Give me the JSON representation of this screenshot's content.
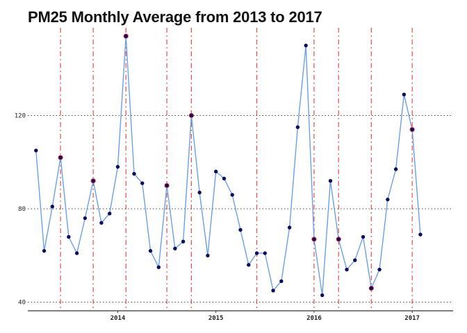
{
  "chart_data": {
    "type": "line",
    "title": "PM25 Monthly Average from 2013 to 2017",
    "xlabel": "",
    "ylabel": "",
    "x_axis": "dates",
    "x": [
      "2013-03",
      "2013-04",
      "2013-05",
      "2013-06",
      "2013-07",
      "2013-08",
      "2013-09",
      "2013-10",
      "2013-11",
      "2013-12",
      "2014-01",
      "2014-02",
      "2014-03",
      "2014-04",
      "2014-05",
      "2014-06",
      "2014-07",
      "2014-08",
      "2014-09",
      "2014-10",
      "2014-11",
      "2014-12",
      "2015-01",
      "2015-02",
      "2015-03",
      "2015-04",
      "2015-05",
      "2015-06",
      "2015-07",
      "2015-08",
      "2015-09",
      "2015-10",
      "2015-11",
      "2015-12",
      "2016-01",
      "2016-02",
      "2016-03",
      "2016-04",
      "2016-05",
      "2016-06",
      "2016-07",
      "2016-08",
      "2016-09",
      "2016-10",
      "2016-11",
      "2016-12",
      "2017-01",
      "2017-02"
    ],
    "series": [
      {
        "values": [
          105,
          62,
          81,
          102,
          68,
          61,
          76,
          92,
          74,
          78,
          98,
          154,
          95,
          91,
          62,
          55,
          90,
          63,
          66,
          120,
          87,
          60,
          96,
          93,
          86,
          71,
          56,
          61,
          61,
          45,
          49,
          72,
          115,
          150,
          67,
          43,
          92,
          67,
          54,
          58,
          68,
          46,
          54,
          84,
          97,
          129,
          114,
          69
        ],
        "color": "#6aa0e8",
        "marker_color": "#0d0d5c"
      }
    ],
    "highlight_points": [
      "2013-06",
      "2013-10",
      "2014-02",
      "2014-07",
      "2014-10",
      "2016-01",
      "2016-04",
      "2016-08",
      "2017-01"
    ],
    "highlight_color": "#e03a3a",
    "yticks": [
      40,
      80,
      120
    ],
    "ytick_labels": [
      "40",
      "80",
      "120"
    ],
    "xticks": [
      "2014-01",
      "2015-01",
      "2016-01",
      "2017-01"
    ],
    "xtick_labels": [
      "2014",
      "2015",
      "2016",
      "2017"
    ],
    "ylim": [
      39,
      157
    ],
    "xlim": [
      "2013-02",
      "2017-06"
    ],
    "vlines": [
      "2013-06",
      "2013-10",
      "2014-02",
      "2014-07",
      "2014-10",
      "2015-06",
      "2016-01",
      "2016-04",
      "2016-08",
      "2017-01"
    ],
    "vline_color": "#ef4b4b",
    "grid": "horizontal dotted",
    "legend": "none"
  }
}
